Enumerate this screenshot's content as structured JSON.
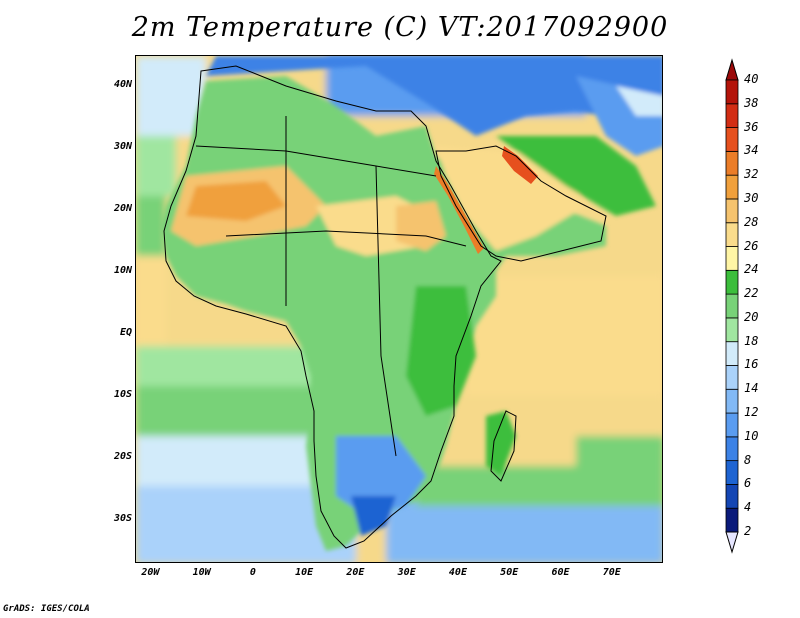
{
  "title": "2m Temperature (C) VT:2017092900",
  "credit": "GrADS: IGES/COLA",
  "map": {
    "lon_range": [
      -23,
      80
    ],
    "lat_range": [
      -37,
      45
    ],
    "y_ticks": [
      {
        "lat": 40,
        "label": "40N"
      },
      {
        "lat": 30,
        "label": "30N"
      },
      {
        "lat": 20,
        "label": "20N"
      },
      {
        "lat": 10,
        "label": "10N"
      },
      {
        "lat": 0,
        "label": "EQ"
      },
      {
        "lat": -10,
        "label": "10S"
      },
      {
        "lat": -20,
        "label": "20S"
      },
      {
        "lat": -30,
        "label": "30S"
      }
    ],
    "x_ticks": [
      {
        "lon": -20,
        "label": "20W"
      },
      {
        "lon": -10,
        "label": "10W"
      },
      {
        "lon": 0,
        "label": "0"
      },
      {
        "lon": 10,
        "label": "10E"
      },
      {
        "lon": 20,
        "label": "20E"
      },
      {
        "lon": 30,
        "label": "30E"
      },
      {
        "lon": 40,
        "label": "40E"
      },
      {
        "lon": 50,
        "label": "50E"
      },
      {
        "lon": 60,
        "label": "60E"
      },
      {
        "lon": 70,
        "label": "70E"
      }
    ]
  },
  "colorbar": {
    "levels": [
      "2",
      "4",
      "6",
      "8",
      "10",
      "12",
      "14",
      "16",
      "18",
      "20",
      "22",
      "24",
      "26",
      "28",
      "30",
      "32",
      "34",
      "36",
      "38",
      "40"
    ],
    "colors": [
      "#0a1a7a",
      "#1446b4",
      "#1e64d2",
      "#3c82e6",
      "#5a9cf0",
      "#82b9f5",
      "#aad2fa",
      "#d2ebfa",
      "#a0e6a0",
      "#78d278",
      "#3cbe3c",
      "#fff5a5",
      "#fadc8c",
      "#f5c36e",
      "#f0a03c",
      "#eb7d28",
      "#e6501e",
      "#d22d14",
      "#b4140a"
    ],
    "under_color": "#e6e6ff",
    "over_color": "#9b0a0a"
  }
}
